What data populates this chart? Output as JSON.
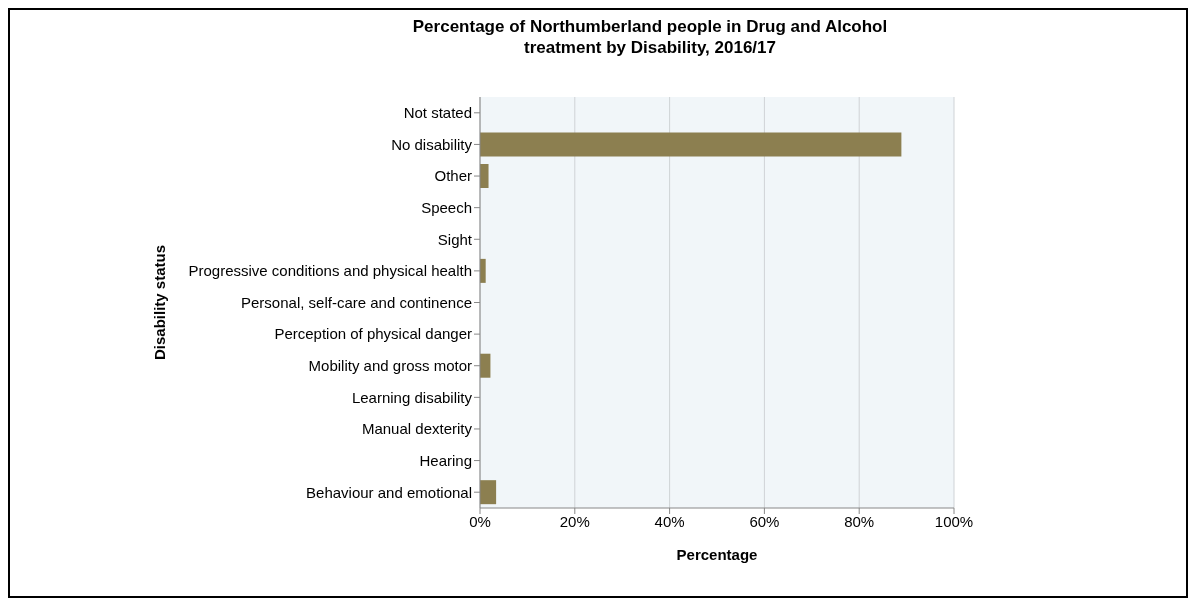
{
  "chart_data": {
    "type": "bar",
    "orientation": "horizontal",
    "title": "Percentage of Northumberland people in Drug and Alcohol\ntreatment by Disability,  2016/17",
    "xlabel": "Percentage",
    "ylabel": "Disability status",
    "categories": [
      "Not stated",
      "No disability",
      "Other",
      "Speech",
      "Sight",
      "Progressive conditions and physical health",
      "Personal, self-care and continence",
      "Perception of physical danger",
      "Mobility and gross motor",
      "Learning disability",
      "Manual dexterity",
      "Hearing",
      "Behaviour and emotional"
    ],
    "values": [
      0,
      88.9,
      1.8,
      0,
      0,
      1.2,
      0,
      0,
      2.2,
      0,
      0,
      0,
      3.4
    ],
    "color": "#8c7f50",
    "xlim": [
      0,
      100
    ],
    "xticks": [
      {
        "value": 0,
        "label": "0%"
      },
      {
        "value": 20,
        "label": "20%"
      },
      {
        "value": 40,
        "label": "40%"
      },
      {
        "value": 60,
        "label": "60%"
      },
      {
        "value": 80,
        "label": "80%"
      },
      {
        "value": 100,
        "label": "100%"
      }
    ],
    "grid": "x"
  }
}
